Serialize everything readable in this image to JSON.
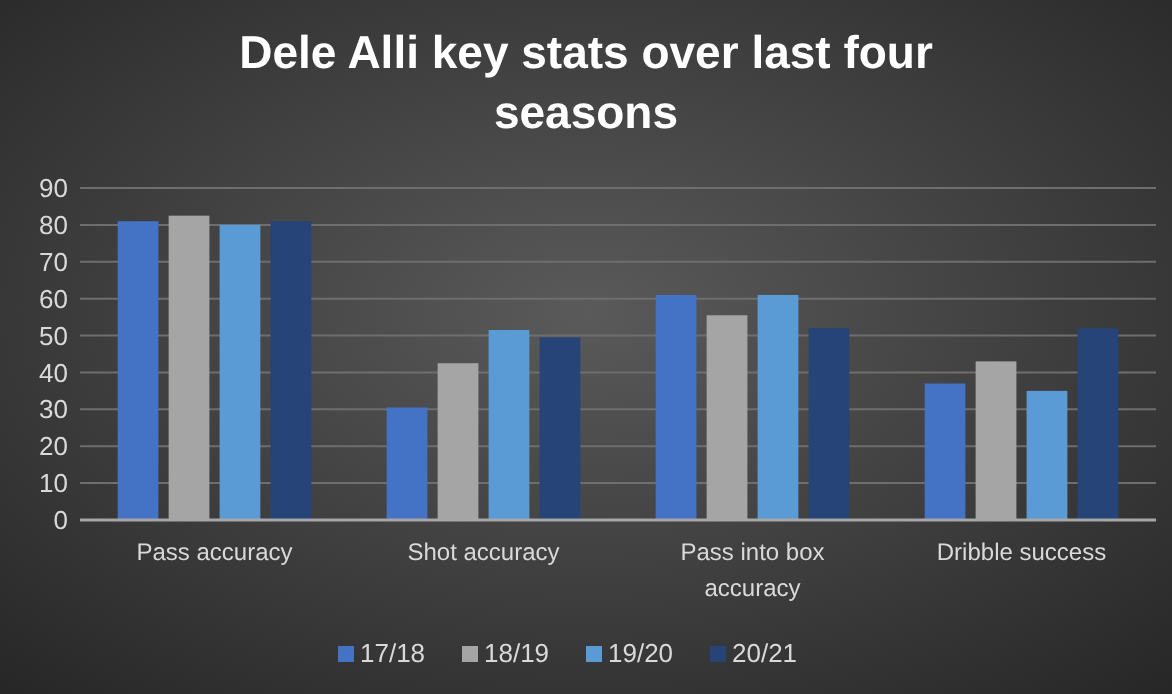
{
  "chart_data": {
    "type": "bar",
    "title": "Dele Alli key stats over last four seasons",
    "categories": [
      "Pass accuracy",
      "Shot accuracy",
      "Pass into box accuracy",
      "Dribble success"
    ],
    "series": [
      {
        "name": "17/18",
        "color": "#4472c4",
        "values": [
          81,
          30.5,
          61,
          37
        ]
      },
      {
        "name": "18/19",
        "color": "#a5a5a5",
        "values": [
          82.5,
          42.5,
          55.5,
          43
        ]
      },
      {
        "name": "19/20",
        "color": "#5b9bd5",
        "values": [
          80,
          51.5,
          61,
          35
        ]
      },
      {
        "name": "20/21",
        "color": "#264478",
        "values": [
          81,
          49.5,
          52,
          52
        ]
      }
    ],
    "ylim": [
      0,
      90
    ],
    "yticks": [
      0,
      10,
      20,
      30,
      40,
      50,
      60,
      70,
      80,
      90
    ],
    "grid": "y",
    "legend": "bottom"
  }
}
